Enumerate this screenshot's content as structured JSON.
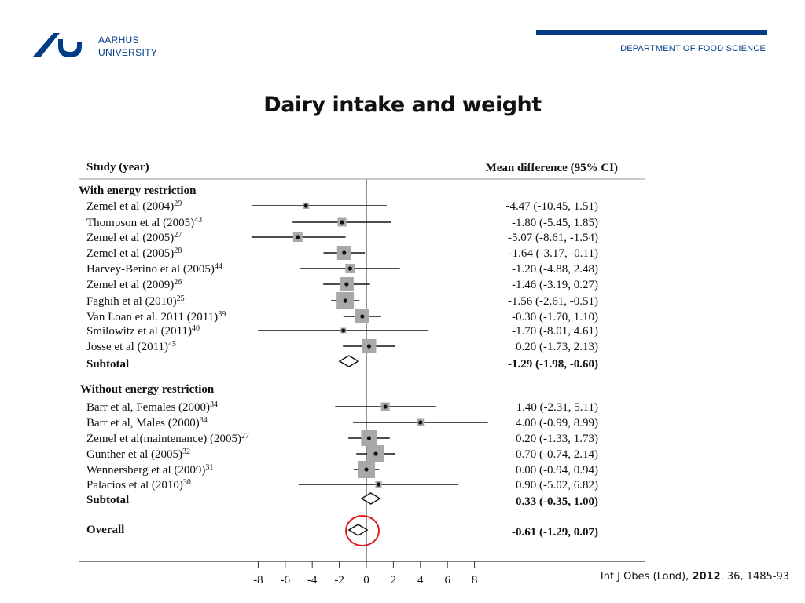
{
  "header": {
    "logo_line1": "AARHUS",
    "logo_line2": "UNIVERSITY",
    "department": "DEPARTMENT OF FOOD SCIENCE",
    "brand_color": "#003d85"
  },
  "slide": {
    "title": "Dairy intake and weight"
  },
  "citation": {
    "journal": "Int J Obes (Lond),",
    "year": "2012",
    "rest": ". 36, 1485-93"
  },
  "chart_data": {
    "type": "forest",
    "header_left": "Study (year)",
    "header_right": "Mean difference (95% CI)",
    "x_ticks": [
      -8,
      -6,
      -4,
      -2,
      0,
      2,
      4,
      6,
      8
    ],
    "xlim": [
      -8,
      8
    ],
    "reference_dashed_x": -0.61,
    "highlight_color": "#e01a1a",
    "groups": [
      {
        "label": "With energy restriction",
        "studies": [
          {
            "name": "Zemel et al (2004)",
            "ref": "29",
            "mean": -4.47,
            "lo": -10.45,
            "hi": 1.51,
            "ci_text": "-4.47 (-10.45, 1.51)"
          },
          {
            "name": "Thompson et al (2005)",
            "ref": "43",
            "mean": -1.8,
            "lo": -5.45,
            "hi": 1.85,
            "ci_text": "-1.80 (-5.45, 1.85)"
          },
          {
            "name": "Zemel et al (2005)",
            "ref": "27",
            "mean": -5.07,
            "lo": -8.61,
            "hi": -1.54,
            "ci_text": "-5.07 (-8.61, -1.54)"
          },
          {
            "name": "Zemel et al (2005)",
            "ref": "28",
            "mean": -1.64,
            "lo": -3.17,
            "hi": -0.11,
            "ci_text": "-1.64 (-3.17, -0.11)"
          },
          {
            "name": "Harvey-Berino et al (2005)",
            "ref": "44",
            "mean": -1.2,
            "lo": -4.88,
            "hi": 2.48,
            "ci_text": "-1.20 (-4.88, 2.48)"
          },
          {
            "name": "Zemel et al (2009)",
            "ref": "26",
            "mean": -1.46,
            "lo": -3.19,
            "hi": 0.27,
            "ci_text": "-1.46 (-3.19, 0.27)"
          },
          {
            "name": "Faghih et al (2010)",
            "ref": "25",
            "mean": -1.56,
            "lo": -2.61,
            "hi": -0.51,
            "ci_text": "-1.56 (-2.61, -0.51)"
          },
          {
            "name": "Van Loan et al. 2011 (2011)",
            "ref": "39",
            "mean": -0.3,
            "lo": -1.7,
            "hi": 1.1,
            "ci_text": "-0.30 (-1.70, 1.10)"
          },
          {
            "name": "Smilowitz et al (2011)",
            "ref": "40",
            "mean": -1.7,
            "lo": -8.01,
            "hi": 4.61,
            "ci_text": "-1.70 (-8.01, 4.61)"
          },
          {
            "name": "Josse et al (2011)",
            "ref": "45",
            "mean": 0.2,
            "lo": -1.73,
            "hi": 2.13,
            "ci_text": "0.20 (-1.73, 2.13)"
          }
        ],
        "subtotal": {
          "label": "Subtotal",
          "mean": -1.29,
          "lo": -1.98,
          "hi": -0.6,
          "ci_text": "-1.29 (-1.98, -0.60)"
        }
      },
      {
        "label": "Without energy restriction",
        "studies": [
          {
            "name": "Barr et al, Females (2000)",
            "ref": "34",
            "mean": 1.4,
            "lo": -2.31,
            "hi": 5.11,
            "ci_text": "1.40 (-2.31, 5.11)"
          },
          {
            "name": "Barr et al, Males (2000)",
            "ref": "34",
            "mean": 4.0,
            "lo": -0.99,
            "hi": 8.99,
            "ci_text": "4.00 (-0.99, 8.99)"
          },
          {
            "name": "Zemel et al(maintenance) (2005)",
            "ref": "27",
            "mean": 0.2,
            "lo": -1.33,
            "hi": 1.73,
            "ci_text": "0.20 (-1.33, 1.73)"
          },
          {
            "name": "Gunther et al (2005)",
            "ref": "32",
            "mean": 0.7,
            "lo": -0.74,
            "hi": 2.14,
            "ci_text": "0.70 (-0.74, 2.14)"
          },
          {
            "name": "Wennersberg et al (2009)",
            "ref": "31",
            "mean": 0.0,
            "lo": -0.94,
            "hi": 0.94,
            "ci_text": "0.00 (-0.94, 0.94)"
          },
          {
            "name": "Palacios et al (2010)",
            "ref": "30",
            "mean": 0.9,
            "lo": -5.02,
            "hi": 6.82,
            "ci_text": "0.90 (-5.02, 6.82)"
          }
        ],
        "subtotal": {
          "label": "Subtotal",
          "mean": 0.33,
          "lo": -0.35,
          "hi": 1.0,
          "ci_text": "0.33 (-0.35, 1.00)"
        }
      }
    ],
    "overall": {
      "label": "Overall",
      "mean": -0.61,
      "lo": -1.29,
      "hi": 0.07,
      "ci_text": "-0.61 (-1.29, 0.07)"
    }
  }
}
